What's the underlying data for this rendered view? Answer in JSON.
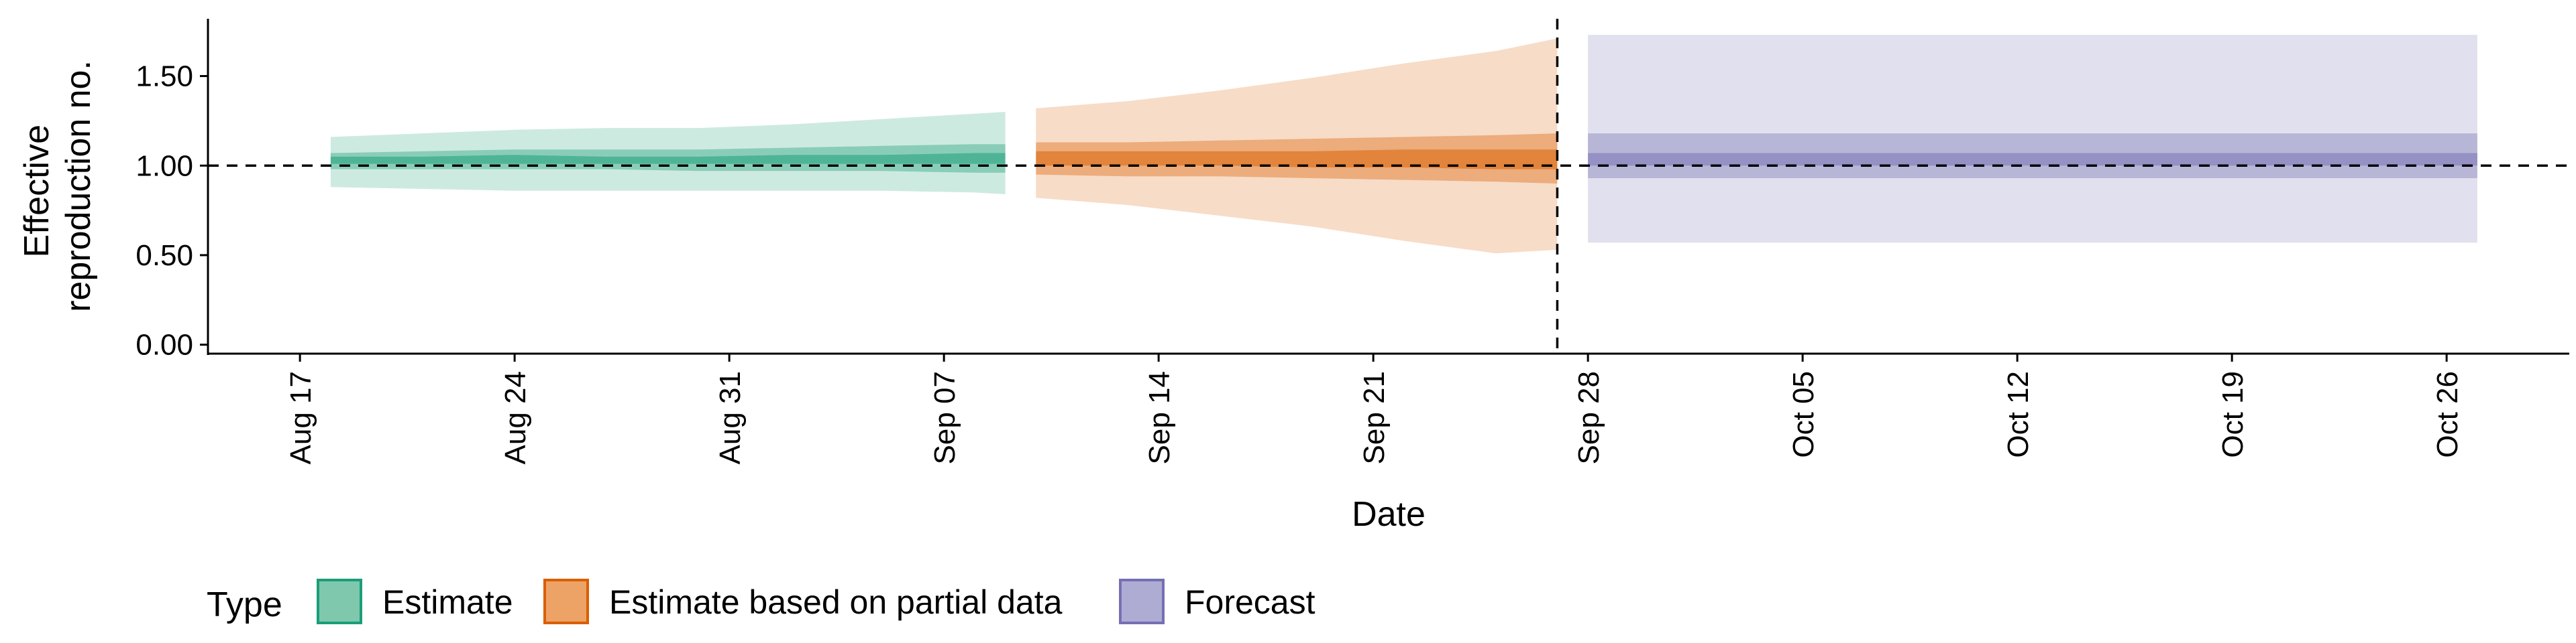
{
  "chart_data": {
    "type": "area",
    "xlabel": "Date",
    "ylabel": [
      "Effective",
      "reproduction no."
    ],
    "ylim": [
      -0.05,
      1.82
    ],
    "xlim": [
      "2020-08-14",
      "2020-10-30"
    ],
    "y_ticks": [
      0.0,
      0.5,
      1.0,
      1.5
    ],
    "y_tick_labels": [
      "0.00",
      "0.50",
      "1.00",
      "1.50"
    ],
    "x_ticks": [
      "2020-08-17",
      "2020-08-24",
      "2020-08-31",
      "2020-09-07",
      "2020-09-14",
      "2020-09-21",
      "2020-09-28",
      "2020-10-05",
      "2020-10-12",
      "2020-10-19",
      "2020-10-26"
    ],
    "x_tick_labels": [
      "Aug 17",
      "Aug 24",
      "Aug 31",
      "Sep 07",
      "Sep 14",
      "Sep 21",
      "Sep 28",
      "Oct 05",
      "Oct 12",
      "Oct 19",
      "Oct 26"
    ],
    "reference_line": {
      "y": 1.0,
      "style": "dashed"
    },
    "vertical_line": {
      "x": "2020-09-27",
      "style": "dashed"
    },
    "grid": false,
    "legend": {
      "title": "Type",
      "position": "bottom-left",
      "items": [
        {
          "label": "Estimate",
          "fill": "#7fc8ae",
          "stroke": "#1b9e77"
        },
        {
          "label": "Estimate based on partial data",
          "fill": "#eda266",
          "stroke": "#d95f02"
        },
        {
          "label": "Forecast",
          "fill": "#aeacd3",
          "stroke": "#7570b3"
        }
      ]
    },
    "series": [
      {
        "type": "Estimate",
        "color": "#1b9e77",
        "dates": [
          "2020-08-18",
          "2020-08-21",
          "2020-08-24",
          "2020-08-27",
          "2020-08-30",
          "2020-09-02",
          "2020-09-05",
          "2020-09-08",
          "2020-09-09"
        ],
        "ci90": {
          "lower": [
            0.88,
            0.87,
            0.86,
            0.86,
            0.86,
            0.86,
            0.86,
            0.85,
            0.84
          ],
          "upper": [
            1.16,
            1.18,
            1.2,
            1.21,
            1.21,
            1.23,
            1.26,
            1.29,
            1.3
          ]
        },
        "ci50": {
          "lower": [
            0.98,
            0.98,
            0.98,
            0.98,
            0.97,
            0.97,
            0.97,
            0.96,
            0.96
          ],
          "upper": [
            1.07,
            1.08,
            1.09,
            1.09,
            1.09,
            1.1,
            1.11,
            1.12,
            1.12
          ]
        },
        "ci20": {
          "lower": [
            1.01,
            1.01,
            1.01,
            1.01,
            1.01,
            1.01,
            1.01,
            1.01,
            1.01
          ],
          "upper": [
            1.05,
            1.05,
            1.06,
            1.05,
            1.05,
            1.06,
            1.06,
            1.07,
            1.07
          ]
        }
      },
      {
        "type": "Estimate based on partial data",
        "color": "#d95f02",
        "dates": [
          "2020-09-10",
          "2020-09-13",
          "2020-09-16",
          "2020-09-19",
          "2020-09-22",
          "2020-09-25",
          "2020-09-27"
        ],
        "ci90": {
          "lower": [
            0.82,
            0.78,
            0.72,
            0.66,
            0.58,
            0.51,
            0.53
          ],
          "upper": [
            1.32,
            1.36,
            1.42,
            1.49,
            1.57,
            1.64,
            1.71
          ]
        },
        "ci50": {
          "lower": [
            0.95,
            0.94,
            0.94,
            0.93,
            0.92,
            0.91,
            0.9
          ],
          "upper": [
            1.13,
            1.13,
            1.14,
            1.15,
            1.16,
            1.17,
            1.18
          ]
        },
        "ci20": {
          "lower": [
            1.0,
            1.0,
            1.0,
            0.99,
            0.99,
            0.98,
            0.98
          ],
          "upper": [
            1.08,
            1.08,
            1.08,
            1.08,
            1.09,
            1.09,
            1.09
          ]
        }
      },
      {
        "type": "Forecast",
        "color": "#7570b3",
        "dates": [
          "2020-09-28",
          "2020-10-27"
        ],
        "ci90": {
          "lower": [
            0.57,
            0.57
          ],
          "upper": [
            1.73,
            1.73
          ]
        },
        "ci50": {
          "lower": [
            0.93,
            0.93
          ],
          "upper": [
            1.18,
            1.18
          ]
        },
        "ci20": {
          "lower": [
            1.0,
            1.0
          ],
          "upper": [
            1.07,
            1.07
          ]
        }
      }
    ]
  }
}
